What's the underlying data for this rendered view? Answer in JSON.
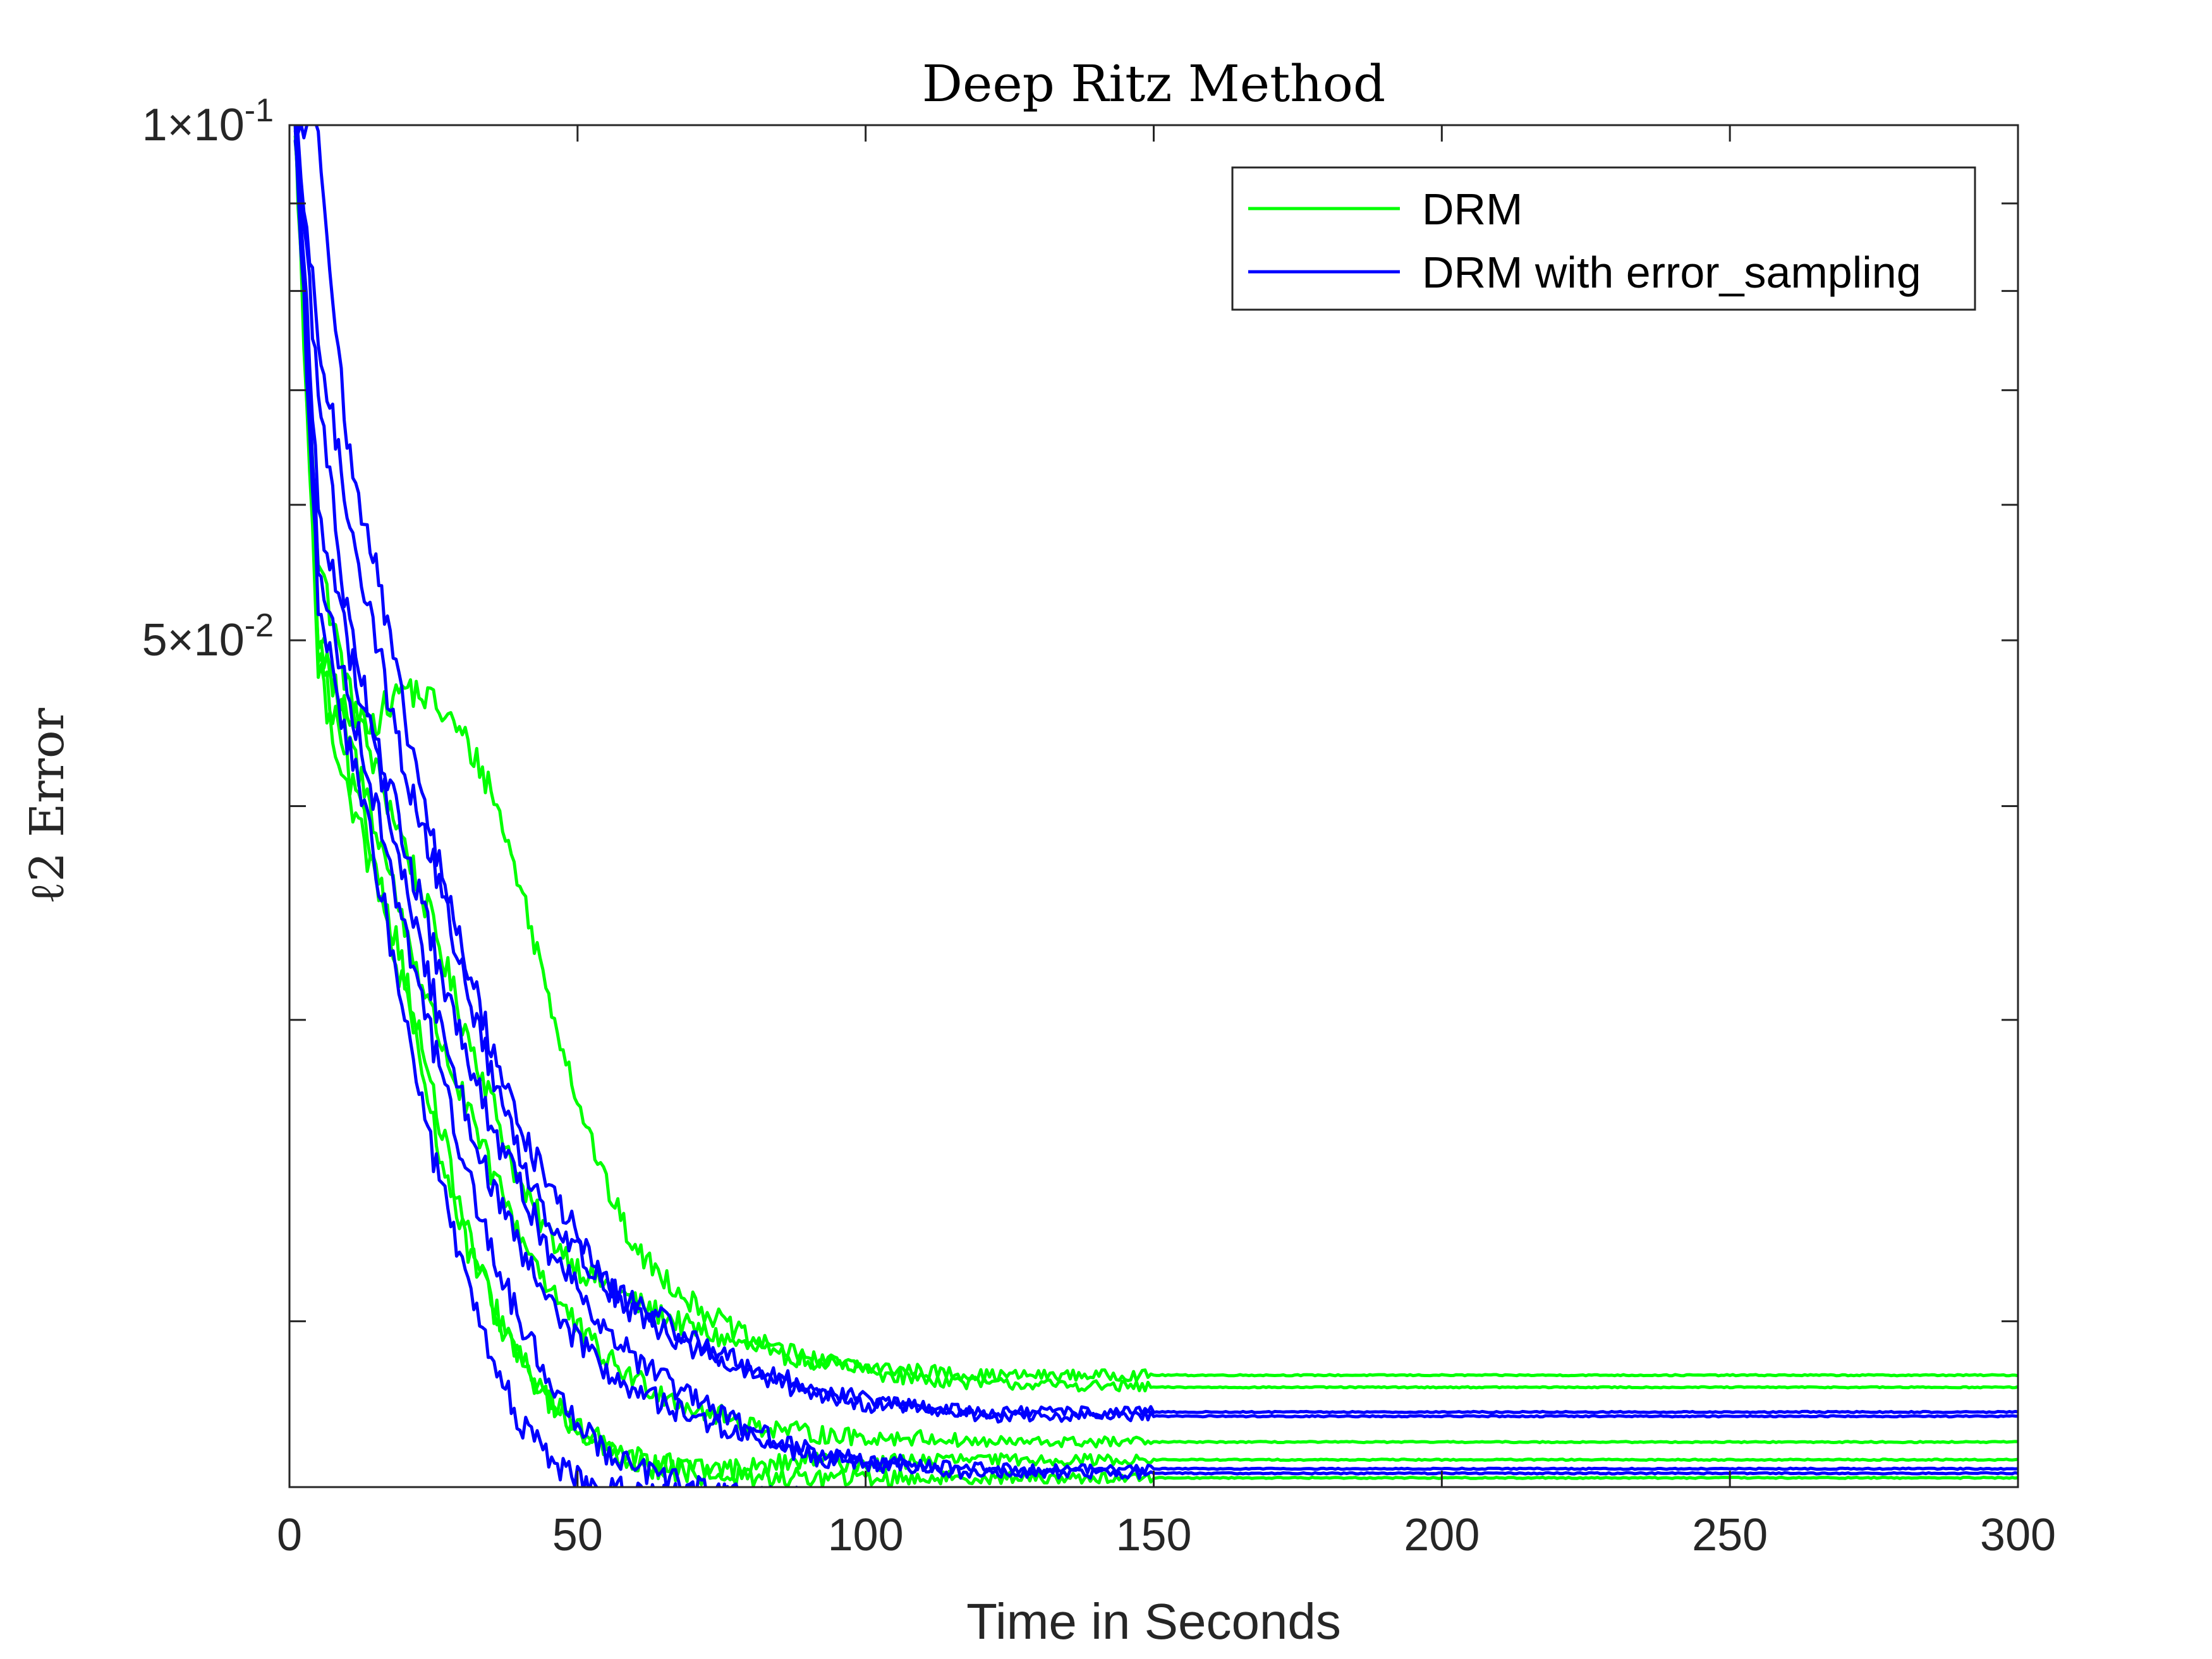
{
  "chart_data": {
    "type": "line",
    "title": "Deep Ritz Method",
    "xlabel": "Time in Seconds",
    "ylabel": "ℓ2 Error",
    "xlim": [
      0,
      300
    ],
    "ylim": [
      0.016,
      0.1
    ],
    "y_scale": "log",
    "grid": false,
    "legend_position": "top-right",
    "x_ticks": [
      0,
      50,
      100,
      150,
      200,
      250,
      300
    ],
    "x_tick_labels": [
      "0",
      "50",
      "100",
      "150",
      "200",
      "250",
      "300"
    ],
    "y_ticks": [
      0.05,
      0.1
    ],
    "y_tick_labels": [
      {
        "mantissa": "5",
        "exponent": "-2"
      },
      {
        "mantissa": "1",
        "exponent": "-1"
      }
    ],
    "y_minor_ticks": [
      0.02,
      0.03,
      0.04,
      0.06,
      0.07,
      0.08,
      0.09
    ],
    "colors": {
      "DRM": "#00ff00",
      "DRM with error_sampling": "#0000ff"
    },
    "legend": [
      "DRM",
      "DRM with error_sampling"
    ],
    "series": [
      {
        "name": "DRM",
        "color": "#00ff00",
        "x": [
          1,
          5,
          10,
          15,
          20,
          25,
          30,
          35,
          40,
          45,
          50,
          55,
          60,
          70,
          80,
          90,
          100,
          110,
          120,
          150,
          300
        ],
        "y": [
          0.1,
          0.056,
          0.047,
          0.042,
          0.038,
          0.034,
          0.03,
          0.027,
          0.024,
          0.0225,
          0.0215,
          0.021,
          0.0205,
          0.0198,
          0.0193,
          0.019,
          0.0188,
          0.0187,
          0.0186,
          0.0186,
          0.0186
        ]
      },
      {
        "name": "DRM",
        "color": "#00ff00",
        "x": [
          1,
          5,
          10,
          15,
          20,
          25,
          30,
          35,
          40,
          45,
          50,
          55,
          60,
          70,
          80,
          90,
          100,
          110,
          120,
          150,
          300
        ],
        "y": [
          0.1,
          0.05,
          0.045,
          0.045,
          0.047,
          0.046,
          0.044,
          0.041,
          0.036,
          0.031,
          0.027,
          0.024,
          0.022,
          0.0205,
          0.0195,
          0.019,
          0.0187,
          0.0185,
          0.0184,
          0.0183,
          0.0183
        ]
      },
      {
        "name": "DRM",
        "color": "#00ff00",
        "x": [
          1,
          5,
          10,
          15,
          20,
          25,
          30,
          35,
          40,
          45,
          50,
          55,
          60,
          70,
          80,
          90,
          100,
          110,
          120,
          150,
          300
        ],
        "y": [
          0.1,
          0.05,
          0.044,
          0.039,
          0.034,
          0.03,
          0.027,
          0.0245,
          0.0225,
          0.021,
          0.0198,
          0.019,
          0.0185,
          0.0178,
          0.0174,
          0.0172,
          0.0171,
          0.0171,
          0.017,
          0.017,
          0.017
        ]
      },
      {
        "name": "DRM",
        "color": "#00ff00",
        "x": [
          1,
          5,
          10,
          15,
          20,
          25,
          30,
          35,
          40,
          45,
          50,
          55,
          60,
          70,
          80,
          90,
          100,
          110,
          120,
          150,
          300
        ],
        "y": [
          0.1,
          0.049,
          0.042,
          0.037,
          0.032,
          0.027,
          0.023,
          0.0205,
          0.019,
          0.018,
          0.0173,
          0.0169,
          0.0166,
          0.0164,
          0.0164,
          0.0166,
          0.0165,
          0.0166,
          0.0166,
          0.0166,
          0.0166
        ]
      },
      {
        "name": "DRM",
        "color": "#00ff00",
        "x": [
          1,
          5,
          10,
          15,
          20,
          25,
          30,
          35,
          40,
          45,
          50,
          55,
          60,
          70,
          80,
          90,
          100,
          110,
          120,
          150,
          300
        ],
        "y": [
          0.1,
          0.048,
          0.041,
          0.036,
          0.031,
          0.026,
          0.0225,
          0.0205,
          0.019,
          0.018,
          0.0173,
          0.0168,
          0.0165,
          0.0163,
          0.0162,
          0.0162,
          0.0162,
          0.0162,
          0.0162,
          0.0162,
          0.0162
        ]
      },
      {
        "name": "DRM with error_sampling",
        "color": "#0000ff",
        "x": [
          1,
          5,
          10,
          15,
          20,
          25,
          30,
          35,
          40,
          45,
          50,
          55,
          60,
          70,
          80,
          90,
          100,
          110,
          120,
          150,
          300
        ],
        "y": [
          0.1,
          0.1,
          0.065,
          0.055,
          0.045,
          0.038,
          0.033,
          0.029,
          0.026,
          0.024,
          0.0225,
          0.021,
          0.0205,
          0.0195,
          0.0188,
          0.0183,
          0.018,
          0.0178,
          0.0177,
          0.0177,
          0.0177
        ]
      },
      {
        "name": "DRM with error_sampling",
        "color": "#0000ff",
        "x": [
          1,
          5,
          10,
          15,
          20,
          25,
          30,
          35,
          40,
          45,
          50,
          55,
          60,
          70,
          80,
          90,
          100,
          110,
          120,
          150,
          300
        ],
        "y": [
          0.1,
          0.075,
          0.06,
          0.05,
          0.042,
          0.037,
          0.032,
          0.028,
          0.025,
          0.023,
          0.022,
          0.021,
          0.0202,
          0.0193,
          0.0186,
          0.0182,
          0.0179,
          0.0178,
          0.0176,
          0.0176,
          0.0176
        ]
      },
      {
        "name": "DRM with error_sampling",
        "color": "#0000ff",
        "x": [
          1,
          5,
          10,
          15,
          20,
          25,
          30,
          35,
          40,
          45,
          50,
          55,
          60,
          70,
          80,
          90,
          100,
          110,
          120,
          150,
          300
        ],
        "y": [
          0.1,
          0.07,
          0.052,
          0.044,
          0.038,
          0.033,
          0.029,
          0.026,
          0.024,
          0.022,
          0.021,
          0.0198,
          0.019,
          0.018,
          0.0173,
          0.0168,
          0.0166,
          0.0165,
          0.0164,
          0.0164,
          0.0164
        ]
      },
      {
        "name": "DRM with error_sampling",
        "color": "#0000ff",
        "x": [
          1,
          5,
          10,
          15,
          20,
          25,
          30,
          35,
          40,
          45,
          50,
          55,
          60,
          70,
          80,
          90,
          100,
          110,
          120,
          150,
          300
        ],
        "y": [
          0.1,
          0.06,
          0.05,
          0.043,
          0.036,
          0.031,
          0.027,
          0.024,
          0.022,
          0.0205,
          0.0195,
          0.0187,
          0.0182,
          0.0176,
          0.0171,
          0.0167,
          0.0165,
          0.0164,
          0.0163,
          0.0163,
          0.0163
        ]
      },
      {
        "name": "DRM with error_sampling",
        "color": "#0000ff",
        "x": [
          1,
          5,
          10,
          15,
          20,
          25,
          30,
          35,
          40,
          45,
          50,
          55,
          60,
          70,
          80,
          90,
          100,
          110,
          120,
          150,
          300
        ],
        "y": [
          0.1,
          0.055,
          0.047,
          0.04,
          0.034,
          0.029,
          0.025,
          0.022,
          0.02,
          0.0185,
          0.0175,
          0.0168,
          0.0164,
          0.016,
          0.0158,
          0.0157,
          0.0157,
          0.0157,
          0.0157,
          0.0157,
          0.0157
        ]
      },
      {
        "name": "DRM with error_sampling",
        "color": "#0000ff",
        "x": [
          1,
          5,
          10,
          15,
          20,
          25,
          30,
          35,
          40,
          45,
          50,
          55,
          60,
          70,
          80,
          90,
          100,
          110,
          120,
          150,
          300
        ],
        "y": [
          0.1,
          0.052,
          0.044,
          0.037,
          0.03,
          0.025,
          0.0215,
          0.019,
          0.0175,
          0.0166,
          0.0162,
          0.016,
          0.0159,
          0.0158,
          0.0158,
          0.0158,
          0.0158,
          0.0158,
          0.0158,
          0.0159,
          0.0159
        ]
      }
    ]
  }
}
